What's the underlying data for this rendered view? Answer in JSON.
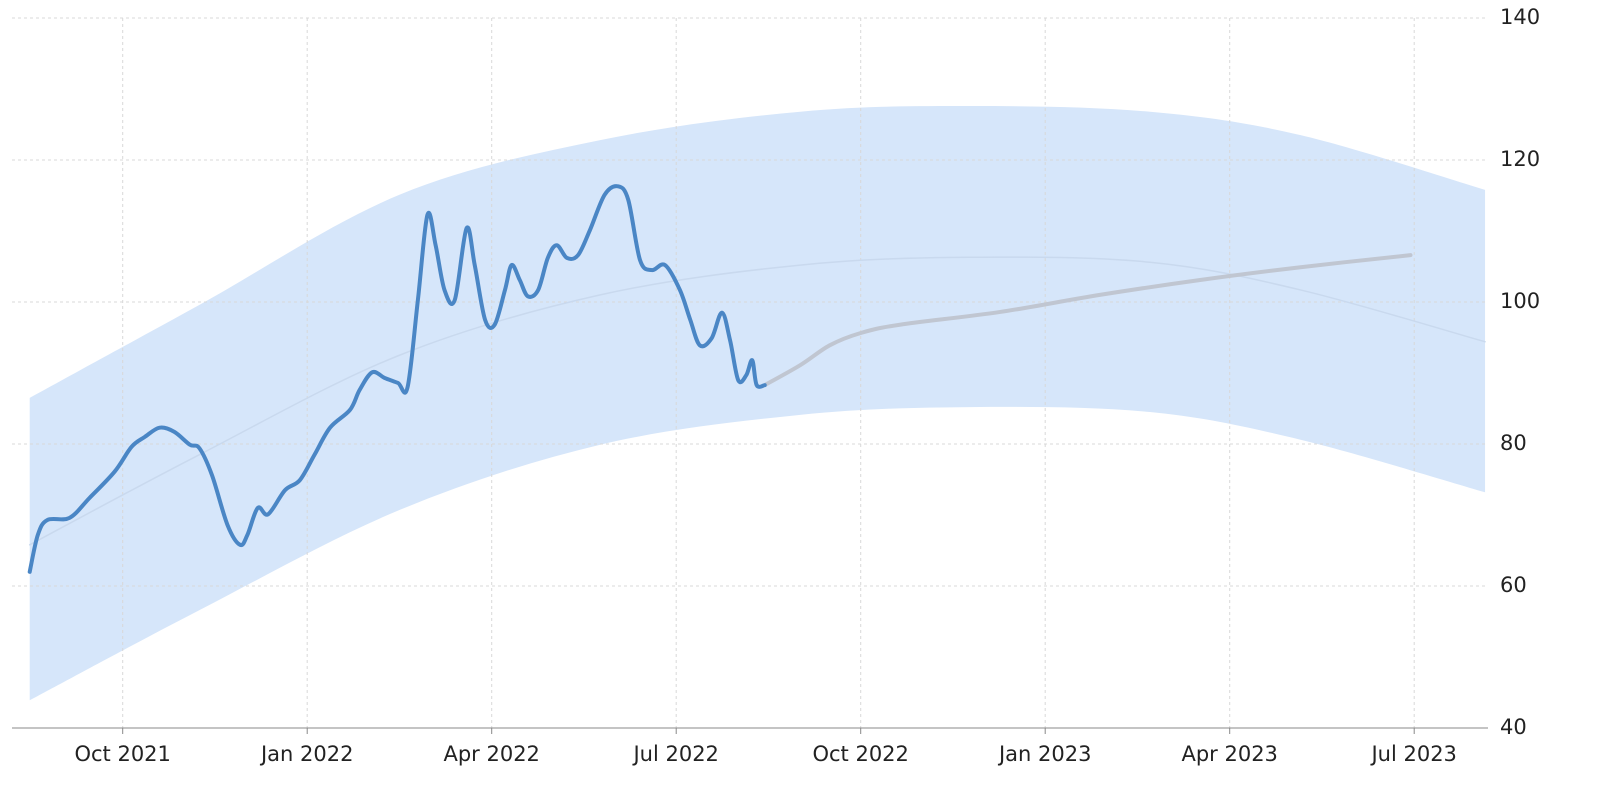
{
  "chart_data": {
    "type": "line",
    "xlim": [
      2021.6,
      2023.6
    ],
    "xticks": [
      {
        "value": 2021.75,
        "label": "Oct 2021"
      },
      {
        "value": 2022.0,
        "label": "Jan 2022"
      },
      {
        "value": 2022.25,
        "label": "Apr 2022"
      },
      {
        "value": 2022.5,
        "label": "Jul 2022"
      },
      {
        "value": 2022.75,
        "label": "Oct 2022"
      },
      {
        "value": 2023.0,
        "label": "Jan 2023"
      },
      {
        "value": 2023.25,
        "label": "Apr 2023"
      },
      {
        "value": 2023.5,
        "label": "Jul 2023"
      }
    ],
    "ylim": [
      40,
      140
    ],
    "yticks": [
      40,
      60,
      80,
      100,
      120,
      140
    ],
    "grid": true,
    "band": {
      "color": "#d6e6fa",
      "x": [
        2021.624,
        2021.854,
        2022.125,
        2022.397,
        2022.668,
        2022.898,
        2023.142,
        2023.346,
        2023.596
      ],
      "upper": [
        86.5,
        99.6,
        115.1,
        122.8,
        126.8,
        127.6,
        126.8,
        123.5,
        115.8
      ],
      "lower": [
        43.9,
        56.6,
        70.7,
        79.9,
        84.1,
        85.2,
        84.5,
        80.6,
        73.2
      ]
    },
    "series": [
      {
        "color": "#c9d9ee",
        "width": 1.5,
        "x": [
          2021.624,
          2021.854,
          2022.125,
          2022.397,
          2022.668,
          2022.898,
          2023.142,
          2023.346,
          2023.596
        ],
        "values": [
          65.8,
          78.5,
          92.5,
          101.0,
          105.2,
          106.3,
          105.6,
          101.7,
          94.4
        ]
      },
      {
        "color": "#c0c6d1",
        "width": 4,
        "x": [
          2022.62,
          2022.668,
          2022.708,
          2022.749,
          2022.803,
          2022.939,
          2023.074,
          2023.21,
          2023.346,
          2023.495
        ],
        "values": [
          88.3,
          91.1,
          93.9,
          95.6,
          96.8,
          98.6,
          101.0,
          103.1,
          104.9,
          106.6
        ]
      },
      {
        "color": "#4a86c5",
        "width": 4,
        "x": [
          2021.624,
          2021.635,
          2021.648,
          2021.678,
          2021.705,
          2021.739,
          2021.762,
          2021.78,
          2021.8,
          2021.82,
          2021.841,
          2021.854,
          2021.871,
          2021.892,
          2021.909,
          2021.919,
          2021.933,
          2021.947,
          2021.97,
          2021.99,
          2022.01,
          2022.031,
          2022.058,
          2022.071,
          2022.088,
          2022.105,
          2022.123,
          2022.136,
          2022.15,
          2022.163,
          2022.174,
          2022.186,
          2022.2,
          2022.216,
          2022.227,
          2022.241,
          2022.254,
          2022.268,
          2022.277,
          2022.288,
          2022.299,
          2022.313,
          2022.326,
          2022.338,
          2022.352,
          2022.367,
          2022.383,
          2022.403,
          2022.421,
          2022.435,
          2022.451,
          2022.467,
          2022.485,
          2022.505,
          2022.519,
          2022.532,
          2022.548,
          2022.562,
          2022.573,
          2022.584,
          2022.595,
          2022.603,
          2022.609,
          2022.62
        ],
        "values": [
          62.0,
          67.2,
          69.3,
          69.6,
          72.4,
          76.1,
          79.6,
          81.0,
          82.3,
          81.7,
          79.9,
          79.4,
          75.6,
          68.6,
          65.8,
          67.2,
          71.0,
          70.1,
          73.5,
          74.9,
          78.5,
          82.3,
          84.8,
          87.6,
          90.1,
          89.3,
          88.6,
          88.0,
          100.3,
          112.3,
          108.0,
          101.7,
          100.3,
          110.4,
          105.2,
          97.5,
          96.8,
          101.7,
          105.2,
          103.1,
          100.8,
          101.7,
          106.2,
          108.0,
          106.2,
          106.6,
          110.1,
          115.1,
          116.3,
          114.4,
          105.9,
          104.5,
          105.2,
          101.7,
          97.5,
          93.9,
          94.9,
          98.5,
          94.6,
          89.0,
          89.7,
          91.8,
          88.3,
          88.3
        ]
      }
    ]
  }
}
